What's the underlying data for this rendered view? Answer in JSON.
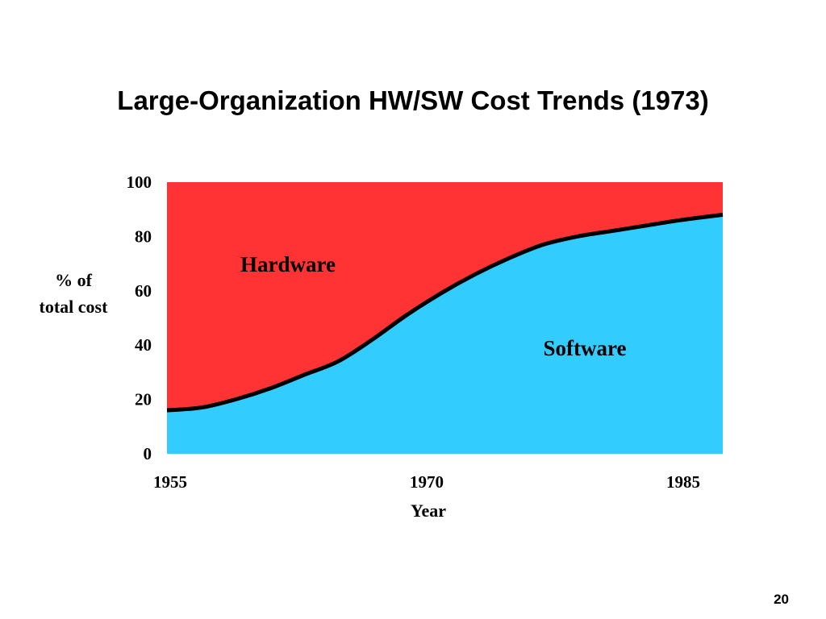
{
  "slide": {
    "title": "Large-Organization HW/SW Cost Trends (1973)",
    "page_number": "20"
  },
  "chart_data": {
    "type": "area",
    "title": "Large-Organization HW/SW Cost Trends (1973)",
    "xlabel": "Year",
    "ylabel_lines": [
      "% of",
      "total cost"
    ],
    "xlim": [
      1955,
      1987.5
    ],
    "ylim": [
      0,
      100
    ],
    "x_ticks": [
      "1955",
      "1970",
      "1985"
    ],
    "x_tick_values": [
      1955,
      1970,
      1985
    ],
    "y_ticks": [
      "0",
      "20",
      "40",
      "60",
      "80",
      "100"
    ],
    "y_tick_values": [
      0,
      20,
      40,
      60,
      80,
      100
    ],
    "stacked": true,
    "series": [
      {
        "name": "Software",
        "color": "#33ccff",
        "x": [
          1955,
          1957,
          1959,
          1961,
          1963,
          1965,
          1967,
          1969,
          1971,
          1973,
          1975,
          1977,
          1979,
          1981,
          1983,
          1985,
          1987.5
        ],
        "values": [
          16,
          17,
          20,
          24,
          29,
          34,
          42,
          51,
          59,
          66,
          72,
          77,
          80,
          82,
          84,
          86,
          88
        ]
      },
      {
        "name": "Hardware",
        "color": "#ff3333",
        "x": [
          1955,
          1957,
          1959,
          1961,
          1963,
          1965,
          1967,
          1969,
          1971,
          1973,
          1975,
          1977,
          1979,
          1981,
          1983,
          1985,
          1987.5
        ],
        "values": [
          84,
          83,
          80,
          76,
          71,
          66,
          58,
          49,
          41,
          34,
          28,
          23,
          20,
          18,
          16,
          14,
          12
        ]
      }
    ],
    "boundary_color": "#000000",
    "grid": false,
    "legend": "none"
  }
}
